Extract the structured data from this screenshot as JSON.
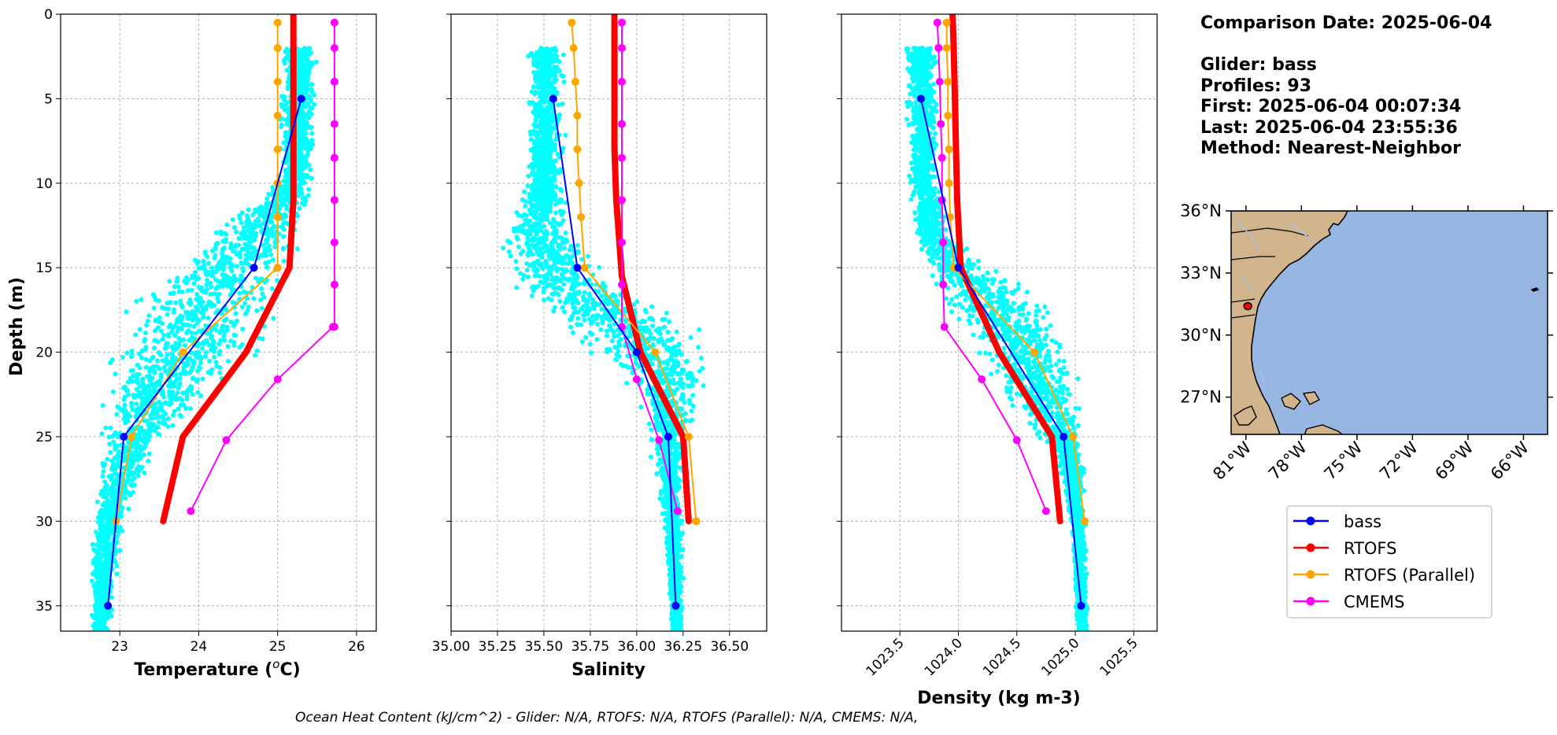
{
  "info": {
    "date_line": "Comparison Date: 2025-06-04",
    "glider_line": "Glider: bass",
    "profiles_line": "Profiles: 93",
    "first_line": "First: 2025-06-04 00:07:34",
    "last_line": "Last: 2025-06-04 23:55:36",
    "method_line": "Method: Nearest-Neighbor"
  },
  "footer": "Ocean Heat Content (kJ/cm^2) - Glider: N/A,  RTOFS: N/A,  RTOFS (Parallel): N/A,  CMEMS: N/A,",
  "colors": {
    "scatter": "#00ffff",
    "bass": "#0000ff",
    "rtofs": "#ff0000",
    "rtofs_parallel": "#ffa500",
    "cmems": "#ff00ff",
    "land": "#d2b48c",
    "ocean": "#97b6e1"
  },
  "map": {
    "lat_labels": [
      "36°N",
      "33°N",
      "30°N",
      "27°N"
    ],
    "lon_labels": [
      "81°W",
      "78°W",
      "75°W",
      "72°W",
      "69°W",
      "66°W"
    ],
    "lat_values": [
      36,
      33,
      30,
      27
    ],
    "lon_values": [
      -81,
      -78,
      -75,
      -72,
      -69,
      -66
    ],
    "extent": {
      "lon_min": -81.8,
      "lon_max": -64.7,
      "lat_min": 25.2,
      "lat_max": 36.0
    },
    "glider_position": {
      "lon": -80.9,
      "lat": 31.4
    }
  },
  "legend": [
    {
      "label": "bass",
      "color_key": "bass"
    },
    {
      "label": "RTOFS",
      "color_key": "rtofs"
    },
    {
      "label": "RTOFS (Parallel)",
      "color_key": "rtofs_parallel"
    },
    {
      "label": "CMEMS",
      "color_key": "cmems"
    }
  ],
  "chart_data": [
    {
      "type": "line",
      "xlabel_main": "Temperature (",
      "xlabel_sup": "o",
      "xlabel_unit": "C)",
      "ylabel": "Depth (m)",
      "xlim": [
        22.25,
        26.25
      ],
      "ylim": [
        36.5,
        0
      ],
      "xticks": [
        23,
        24,
        25,
        26
      ],
      "xtick_labels": [
        "23",
        "24",
        "25",
        "26"
      ],
      "yticks": [
        0,
        5,
        10,
        15,
        20,
        25,
        30,
        35
      ],
      "ytick_labels": [
        "0",
        "5",
        "10",
        "15",
        "20",
        "25",
        "30",
        "35"
      ],
      "rotate_xticks": false,
      "grid": true,
      "scatter_envelope": [
        [
          2,
          25.0,
          25.55
        ],
        [
          10,
          24.95,
          25.5
        ],
        [
          13,
          24.0,
          25.4
        ],
        [
          15,
          23.5,
          25.3
        ],
        [
          17,
          22.9,
          25.2
        ],
        [
          20,
          22.75,
          24.9
        ],
        [
          23,
          22.7,
          24.1
        ],
        [
          26,
          22.7,
          23.5
        ],
        [
          30,
          22.65,
          23.1
        ],
        [
          33,
          22.6,
          23.0
        ],
        [
          36.5,
          22.6,
          22.9
        ]
      ],
      "series": [
        {
          "name": "bass",
          "color_key": "bass",
          "width": 2,
          "marker": 5,
          "x": [
            25.3,
            24.7,
            23.05,
            22.85
          ],
          "y": [
            5,
            15,
            25,
            35
          ]
        },
        {
          "name": "RTOFS",
          "color_key": "rtofs",
          "width": 8,
          "marker": 0,
          "x": [
            25.2,
            25.2,
            25.2,
            25.2,
            25.2,
            25.15,
            24.6,
            23.8,
            23.55
          ],
          "y": [
            0,
            2,
            5,
            8,
            11,
            15,
            20,
            25,
            30
          ]
        },
        {
          "name": "RTOFS (Parallel)",
          "color_key": "rtofs_parallel",
          "width": 2,
          "marker": 5,
          "x": [
            25.0,
            25.0,
            25.0,
            25.0,
            25.0,
            25.0,
            25.0,
            25.0,
            23.8,
            23.15,
            22.95
          ],
          "y": [
            0.5,
            2,
            4,
            6,
            8,
            10,
            12,
            15,
            20,
            25,
            30
          ]
        },
        {
          "name": "CMEMS",
          "color_key": "cmems",
          "width": 2,
          "marker": 5,
          "x": [
            25.72,
            25.72,
            25.72,
            25.72,
            25.72,
            25.72,
            25.72,
            25.72,
            25.72,
            25.7,
            25.0,
            24.35,
            23.9
          ],
          "y": [
            0.5,
            2,
            4,
            6.5,
            8.5,
            11,
            13.5,
            16,
            18.5,
            18.5,
            21.6,
            25.2,
            29.4
          ]
        }
      ]
    },
    {
      "type": "line",
      "xlabel_main": "Salinity",
      "xlabel_sup": "",
      "xlabel_unit": "",
      "ylabel": "",
      "xlim": [
        35.0,
        36.7
      ],
      "ylim": [
        36.5,
        0
      ],
      "xticks": [
        35.0,
        35.25,
        35.5,
        35.75,
        36.0,
        36.25,
        36.5
      ],
      "xtick_labels": [
        "35.00",
        "35.25",
        "35.50",
        "35.75",
        "36.00",
        "36.25",
        "36.50"
      ],
      "yticks": [
        0,
        5,
        10,
        15,
        20,
        25,
        30,
        35
      ],
      "ytick_labels": [],
      "rotate_xticks": false,
      "grid": true,
      "scatter_envelope": [
        [
          2,
          35.4,
          35.62
        ],
        [
          10,
          35.38,
          35.62
        ],
        [
          13,
          35.25,
          35.7
        ],
        [
          16,
          35.3,
          35.95
        ],
        [
          18,
          35.5,
          36.3
        ],
        [
          20,
          35.7,
          36.45
        ],
        [
          22,
          35.95,
          36.4
        ],
        [
          25,
          36.05,
          36.3
        ],
        [
          28,
          36.1,
          36.26
        ],
        [
          32,
          36.15,
          36.26
        ],
        [
          36.5,
          36.18,
          36.25
        ]
      ],
      "series": [
        {
          "name": "bass",
          "color_key": "bass",
          "width": 2,
          "marker": 5,
          "x": [
            35.55,
            35.68,
            36.0,
            36.17,
            36.21
          ],
          "y": [
            5,
            15,
            20,
            25,
            35
          ]
        },
        {
          "name": "RTOFS",
          "color_key": "rtofs",
          "width": 8,
          "marker": 0,
          "x": [
            35.88,
            35.88,
            35.88,
            35.88,
            35.89,
            35.92,
            36.02,
            36.25,
            36.28
          ],
          "y": [
            0,
            2,
            5,
            8,
            11,
            15.5,
            20,
            25,
            30
          ]
        },
        {
          "name": "RTOFS (Parallel)",
          "color_key": "rtofs_parallel",
          "width": 2,
          "marker": 5,
          "x": [
            35.65,
            35.66,
            35.67,
            35.68,
            35.68,
            35.69,
            35.7,
            35.72,
            36.1,
            36.28,
            36.32
          ],
          "y": [
            0.5,
            2,
            4,
            6,
            8,
            10,
            12,
            15,
            20,
            25,
            30
          ]
        },
        {
          "name": "CMEMS",
          "color_key": "cmems",
          "width": 2,
          "marker": 5,
          "x": [
            35.92,
            35.92,
            35.92,
            35.92,
            35.92,
            35.92,
            35.92,
            35.92,
            35.92,
            36.0,
            36.12,
            36.22
          ],
          "y": [
            0.5,
            2,
            4,
            6.5,
            8.5,
            11,
            13.5,
            16,
            18.5,
            21.6,
            25.2,
            29.4
          ]
        }
      ]
    },
    {
      "type": "line",
      "xlabel_main": "Density (kg m-3)",
      "xlabel_sup": "",
      "xlabel_unit": "",
      "ylabel": "",
      "xlim": [
        1023.0,
        1025.7
      ],
      "ylim": [
        36.5,
        0
      ],
      "xticks": [
        1023.5,
        1024.0,
        1024.5,
        1025.0,
        1025.5
      ],
      "xtick_labels": [
        "1023.5",
        "1024.0",
        "1024.5",
        "1025.0",
        "1025.5"
      ],
      "yticks": [
        0,
        5,
        10,
        15,
        20,
        25,
        30,
        35
      ],
      "ytick_labels": [],
      "rotate_xticks": true,
      "grid": true,
      "scatter_envelope": [
        [
          2,
          1023.5,
          1023.85
        ],
        [
          10,
          1023.55,
          1023.85
        ],
        [
          13,
          1023.6,
          1023.95
        ],
        [
          15,
          1023.65,
          1024.3
        ],
        [
          17,
          1023.8,
          1024.85
        ],
        [
          20,
          1024.0,
          1025.1
        ],
        [
          23,
          1024.4,
          1025.1
        ],
        [
          26,
          1024.8,
          1025.1
        ],
        [
          30,
          1024.95,
          1025.1
        ],
        [
          36.5,
          1025.0,
          1025.12
        ]
      ],
      "series": [
        {
          "name": "bass",
          "color_key": "bass",
          "width": 2,
          "marker": 5,
          "x": [
            1023.68,
            1024.0,
            1024.9,
            1025.05
          ],
          "y": [
            5,
            15,
            25,
            35
          ]
        },
        {
          "name": "RTOFS",
          "color_key": "rtofs",
          "width": 8,
          "marker": 0,
          "x": [
            1023.95,
            1023.96,
            1023.97,
            1023.98,
            1023.99,
            1024.02,
            1024.35,
            1024.8,
            1024.87
          ],
          "y": [
            0,
            2,
            5,
            8,
            11,
            15,
            20,
            25,
            30
          ]
        },
        {
          "name": "RTOFS (Parallel)",
          "color_key": "rtofs_parallel",
          "width": 2,
          "marker": 5,
          "x": [
            1023.9,
            1023.9,
            1023.91,
            1023.91,
            1023.92,
            1023.92,
            1023.93,
            1023.96,
            1024.65,
            1024.98,
            1025.08
          ],
          "y": [
            0.5,
            2,
            4,
            6,
            8,
            10,
            12,
            15,
            20,
            25,
            30
          ]
        },
        {
          "name": "CMEMS",
          "color_key": "cmems",
          "width": 2,
          "marker": 5,
          "x": [
            1023.82,
            1023.83,
            1023.84,
            1023.85,
            1023.86,
            1023.86,
            1023.87,
            1023.87,
            1023.88,
            1024.2,
            1024.5,
            1024.75
          ],
          "y": [
            0.5,
            2,
            4,
            6.5,
            8.5,
            11,
            13.5,
            16,
            18.5,
            21.6,
            25.2,
            29.4
          ]
        }
      ]
    }
  ]
}
